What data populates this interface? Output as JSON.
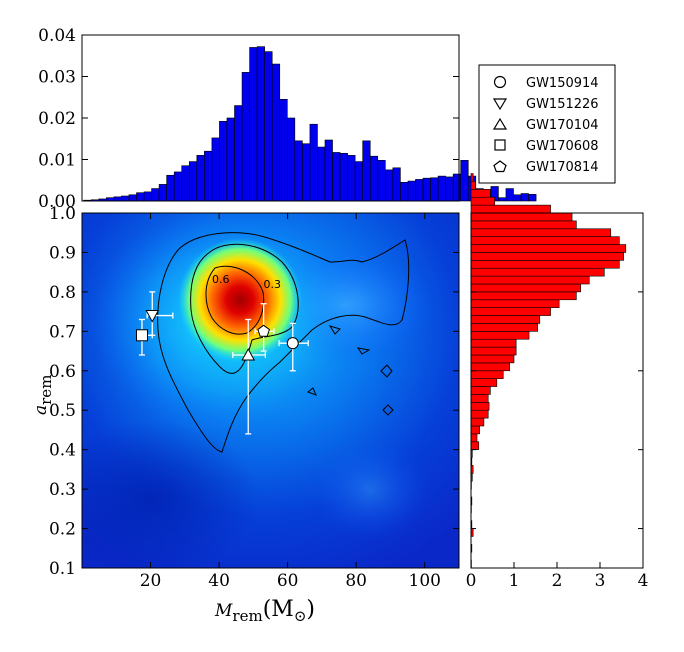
{
  "chart_data": [
    {
      "type": "bar",
      "panel": "top-histogram",
      "xlim": [
        0,
        110
      ],
      "ylim": [
        0,
        0.04
      ],
      "yticks": [
        "0.00",
        "0.01",
        "0.02",
        "0.03",
        "0.04"
      ],
      "bin_start": 0.5,
      "bin_width": 2.2,
      "values": [
        0.0002,
        0.0003,
        0.0005,
        0.0008,
        0.001,
        0.0012,
        0.0015,
        0.002,
        0.0022,
        0.003,
        0.004,
        0.0062,
        0.007,
        0.0085,
        0.0095,
        0.011,
        0.012,
        0.0152,
        0.0192,
        0.02,
        0.023,
        0.031,
        0.037,
        0.0372,
        0.036,
        0.033,
        0.0245,
        0.02,
        0.0145,
        0.0138,
        0.0185,
        0.013,
        0.0147,
        0.0117,
        0.0115,
        0.011,
        0.0095,
        0.0145,
        0.0108,
        0.0098,
        0.0075,
        0.008,
        0.0045,
        0.0048,
        0.0052,
        0.0055,
        0.0056,
        0.006,
        0.0058,
        0.0065,
        0.0098,
        0.006,
        0.003,
        0.0025,
        0.0035,
        0.0008,
        0.003,
        0.0015,
        0.0018,
        0.0016
      ],
      "bar_color": "#0000ee"
    },
    {
      "type": "heatmap",
      "panel": "joint-density",
      "xlabel": "M_rem(M_⊙)",
      "ylabel": "a_rem",
      "xlim": [
        0,
        110
      ],
      "ylim": [
        0.1,
        1.0
      ],
      "xticks": [
        "20",
        "40",
        "60",
        "80",
        "100"
      ],
      "yticks": [
        "0.1",
        "0.2",
        "0.3",
        "0.4",
        "0.5",
        "0.6",
        "0.7",
        "0.8",
        "0.9",
        "1.0"
      ],
      "contour_labels": [
        {
          "text": "0.6",
          "x": 40.5,
          "y": 0.822
        },
        {
          "text": "0.3",
          "x": 55.5,
          "y": 0.81
        }
      ],
      "events": [
        {
          "name": "GW150914",
          "marker": "circle",
          "x": 61.5,
          "y": 0.67,
          "x_err": [
            4.0,
            4.5
          ],
          "y_err": [
            0.07,
            0.05
          ]
        },
        {
          "name": "GW151226",
          "marker": "triangle-down",
          "x": 20.5,
          "y": 0.74,
          "x_err": [
            1.5,
            6.0
          ],
          "y_err": [
            0.05,
            0.06
          ]
        },
        {
          "name": "GW170104",
          "marker": "triangle-up",
          "x": 48.5,
          "y": 0.64,
          "x_err": [
            4.5,
            5.0
          ],
          "y_err": [
            0.2,
            0.09
          ]
        },
        {
          "name": "GW170608",
          "marker": "square",
          "x": 17.5,
          "y": 0.69,
          "x_err": [
            1.0,
            3.0
          ],
          "y_err": [
            0.05,
            0.04
          ]
        },
        {
          "name": "GW170814",
          "marker": "pentagon",
          "x": 53.0,
          "y": 0.7,
          "x_err": [
            2.5,
            3.0
          ],
          "y_err": [
            0.05,
            0.07
          ]
        }
      ]
    },
    {
      "type": "bar",
      "orientation": "horizontal",
      "panel": "right-histogram",
      "xlim": [
        0,
        4
      ],
      "ylim": [
        0.1,
        1.0
      ],
      "xticks": [
        "0",
        "1",
        "2",
        "3",
        "4"
      ],
      "bin_start": 0.1,
      "bin_width": 0.02,
      "values": [
        0.01,
        0.0,
        0.02,
        0.0,
        0.05,
        0.02,
        0.0,
        0.01,
        0.02,
        0.0,
        0.01,
        0.03,
        0.05,
        0.02,
        0.03,
        0.18,
        0.14,
        0.2,
        0.3,
        0.4,
        0.42,
        0.4,
        0.45,
        0.6,
        0.75,
        0.9,
        1.0,
        1.05,
        1.05,
        1.35,
        1.55,
        1.6,
        1.85,
        2.05,
        2.45,
        2.55,
        2.75,
        3.1,
        3.45,
        3.55,
        3.6,
        3.45,
        3.25,
        2.45,
        2.35,
        1.85,
        0.55,
        0.45,
        0.1,
        0.05
      ],
      "bar_color": "#ff0000"
    }
  ],
  "legend": {
    "entries": [
      {
        "label": "GW150914",
        "icon": "circle-marker"
      },
      {
        "label": "GW151226",
        "icon": "triangle-down-marker"
      },
      {
        "label": "GW170104",
        "icon": "triangle-up-marker"
      },
      {
        "label": "GW170608",
        "icon": "square-marker"
      },
      {
        "label": "GW170814",
        "icon": "pentagon-marker"
      }
    ]
  },
  "axis_labels": {
    "x_main": "M",
    "x_sub": "rem",
    "x_unit_open": "(M",
    "x_unit_sub": "⊙",
    "x_unit_close": ")",
    "y_main": "a",
    "y_sub": "rem"
  }
}
